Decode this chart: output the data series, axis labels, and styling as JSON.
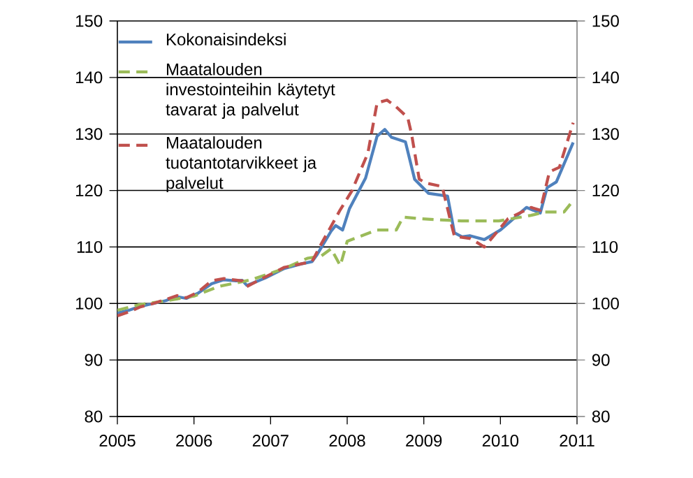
{
  "chart_data": {
    "type": "line",
    "xlim": [
      2005,
      2011
    ],
    "xticks": [
      2005,
      2006,
      2007,
      2008,
      2009,
      2010,
      2011
    ],
    "ylim": [
      80,
      150
    ],
    "yticks": [
      80,
      90,
      100,
      110,
      120,
      130,
      140,
      150
    ],
    "y2lim": [
      80,
      150
    ],
    "y2ticks": [
      80,
      90,
      100,
      110,
      120,
      130,
      140,
      150
    ],
    "grid": "y",
    "legend": "top left",
    "marker": "none",
    "series": [
      {
        "name": "Kokonaisindeksi",
        "color": "#4f81bd",
        "line_style": "solid",
        "x": [
          2005.0,
          2005.15,
          2005.3,
          2005.47,
          2005.63,
          2005.78,
          2005.9,
          2006.05,
          2006.23,
          2006.39,
          2006.55,
          2006.63,
          2006.69,
          2006.93,
          2007.18,
          2007.4,
          2007.54,
          2007.6,
          2007.79,
          2007.85,
          2007.94,
          2008.03,
          2008.24,
          2008.39,
          2008.49,
          2008.58,
          2008.76,
          2008.88,
          2009.06,
          2009.31,
          2009.4,
          2009.5,
          2009.6,
          2009.79,
          2010.0,
          2010.34,
          2010.52,
          2010.61,
          2010.73,
          2010.95
        ],
        "values": [
          98.3,
          98.8,
          99.5,
          100,
          100.5,
          101.2,
          100.9,
          101.8,
          103.5,
          104.2,
          104,
          104.1,
          103.2,
          104.5,
          106.2,
          107,
          107.4,
          108.5,
          112.8,
          113.8,
          113,
          116.8,
          122.2,
          129.6,
          130.8,
          129.4,
          128.6,
          122,
          119.5,
          119,
          112.5,
          111.8,
          112,
          111.3,
          113,
          117,
          116,
          120.5,
          121.5,
          128.5
        ]
      },
      {
        "name": "Maatalouden investointeihin käytetyt tavarat ja palvelut",
        "color": "#9bbb59",
        "line_style": "dashed",
        "x": [
          2005.0,
          2005.29,
          2005.6,
          2006.0,
          2006.32,
          2006.75,
          2007.18,
          2007.48,
          2007.66,
          2007.79,
          2007.91,
          2008.0,
          2008.21,
          2008.39,
          2008.64,
          2008.73,
          2008.94,
          2009.49,
          2009.98,
          2010.4,
          2010.58,
          2010.83,
          2010.95
        ],
        "values": [
          98.8,
          99.8,
          100.4,
          101.3,
          103,
          104.2,
          106.2,
          108,
          108.4,
          109.7,
          106.7,
          111,
          112.1,
          113,
          113,
          115.3,
          115,
          114.6,
          114.6,
          115.6,
          116.2,
          116.2,
          118.2
        ]
      },
      {
        "name": "Maatalouden tuotantotarvikkeet ja palvelut",
        "color": "#c0504d",
        "line_style": "dashed",
        "x": [
          2005.0,
          2005.15,
          2005.3,
          2005.47,
          2005.63,
          2005.78,
          2005.9,
          2006.05,
          2006.23,
          2006.39,
          2006.63,
          2006.69,
          2006.93,
          2007.18,
          2007.54,
          2007.66,
          2007.91,
          2008.06,
          2008.27,
          2008.39,
          2008.52,
          2008.64,
          2008.79,
          2008.84,
          2008.94,
          2009.03,
          2009.24,
          2009.36,
          2009.4,
          2009.61,
          2009.79,
          2010.1,
          2010.4,
          2010.52,
          2010.64,
          2010.77,
          2010.95
        ],
        "values": [
          97.8,
          98.5,
          99.4,
          100,
          100.7,
          101.4,
          101,
          102,
          104,
          104.4,
          104,
          103,
          104.7,
          106.4,
          107.4,
          110.5,
          116.6,
          119.9,
          126.6,
          135.5,
          136,
          134.8,
          132.9,
          130,
          122,
          121.3,
          120.7,
          114,
          111.9,
          111.5,
          110,
          115,
          117,
          116.5,
          123.3,
          124.1,
          132
        ]
      }
    ]
  }
}
